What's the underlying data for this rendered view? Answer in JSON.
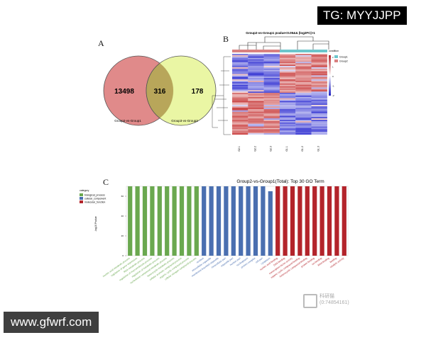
{
  "panels": {
    "a": "A",
    "b": "B",
    "c": "C"
  },
  "venn": {
    "left_only": "13498",
    "overlap": "316",
    "right_only": "178",
    "left_label": "Group2-vs-Group1",
    "right_label": "Group3-vs-Group2",
    "colors": {
      "left": "#e08a8a",
      "right": "#e8f59a",
      "overlap": "#b8a65a"
    }
  },
  "heatmap": {
    "title": "Group2-vs-Group1 pvalue<0.05&& |log2FC|>1",
    "columns": [
      "G2.1",
      "G2.2",
      "G2.3",
      "G1.1",
      "G1.2",
      "G1.3"
    ],
    "legend_title": "condition",
    "legend_items": [
      {
        "label": "Group1",
        "color": "#6cc6cc"
      },
      {
        "label": "Group2",
        "color": "#d98080"
      }
    ],
    "scale_ticks": [
      "2",
      "1",
      "0",
      "-1",
      "-2"
    ]
  },
  "chart_data": {
    "type": "bar",
    "title": "Group2-vs-Group1(Total): Top 30 GO Term",
    "xlabel": "",
    "ylabel": "-log10 Pvalue",
    "ylim": [
      0,
      70
    ],
    "yticks": [
      "0",
      "20",
      "40",
      "60"
    ],
    "legend_title": "category",
    "legend_position": "left",
    "series": [
      {
        "name": "biological_process",
        "color": "#6aa84f"
      },
      {
        "name": "cellular_component",
        "color": "#4a6fb0"
      },
      {
        "name": "molecular_function",
        "color": "#b3242b"
      }
    ],
    "categories": [
      "nucleic acid metabolic process",
      "regulation of gene expression",
      "RNA metabolic process",
      "regulation of macromolecule process",
      "regulation of metabolic process",
      "nucleobase compound metabolic process",
      "heterocycle metabolic process",
      "cellular aromatic compound process",
      "organic cyclic compound process",
      "cellular nitrogen compound process",
      "nucleus",
      "intracellular organelle",
      "membrane-bounded organelle",
      "intracellular part",
      "organelle part",
      "nuclear part",
      "nucleoplasm",
      "protein complex",
      "cell part",
      "cytoplasm",
      "nucleic acid binding",
      "DNA binding",
      "transcription factor activity",
      "organic cyclic compound binding",
      "heterocyclic compound binding",
      "protein binding",
      "ion binding",
      "RNA binding",
      "binding",
      "catalytic activity"
    ],
    "category_group": [
      0,
      0,
      0,
      0,
      0,
      0,
      0,
      0,
      0,
      0,
      1,
      1,
      1,
      1,
      1,
      1,
      1,
      1,
      1,
      1,
      2,
      2,
      2,
      2,
      2,
      2,
      2,
      2,
      2,
      2
    ],
    "values": [
      70,
      70,
      70,
      70,
      70,
      70,
      70,
      70,
      70,
      70,
      70,
      70,
      70,
      70,
      70,
      70,
      70,
      70,
      70,
      65,
      70,
      70,
      70,
      70,
      70,
      70,
      70,
      70,
      70,
      70
    ]
  },
  "watermarks": {
    "top": "TG: MYYJJPP",
    "bottom": "www.gfwrf.com",
    "stamp_line1": "科研猫",
    "stamp_line2": "(0:74854161)"
  }
}
